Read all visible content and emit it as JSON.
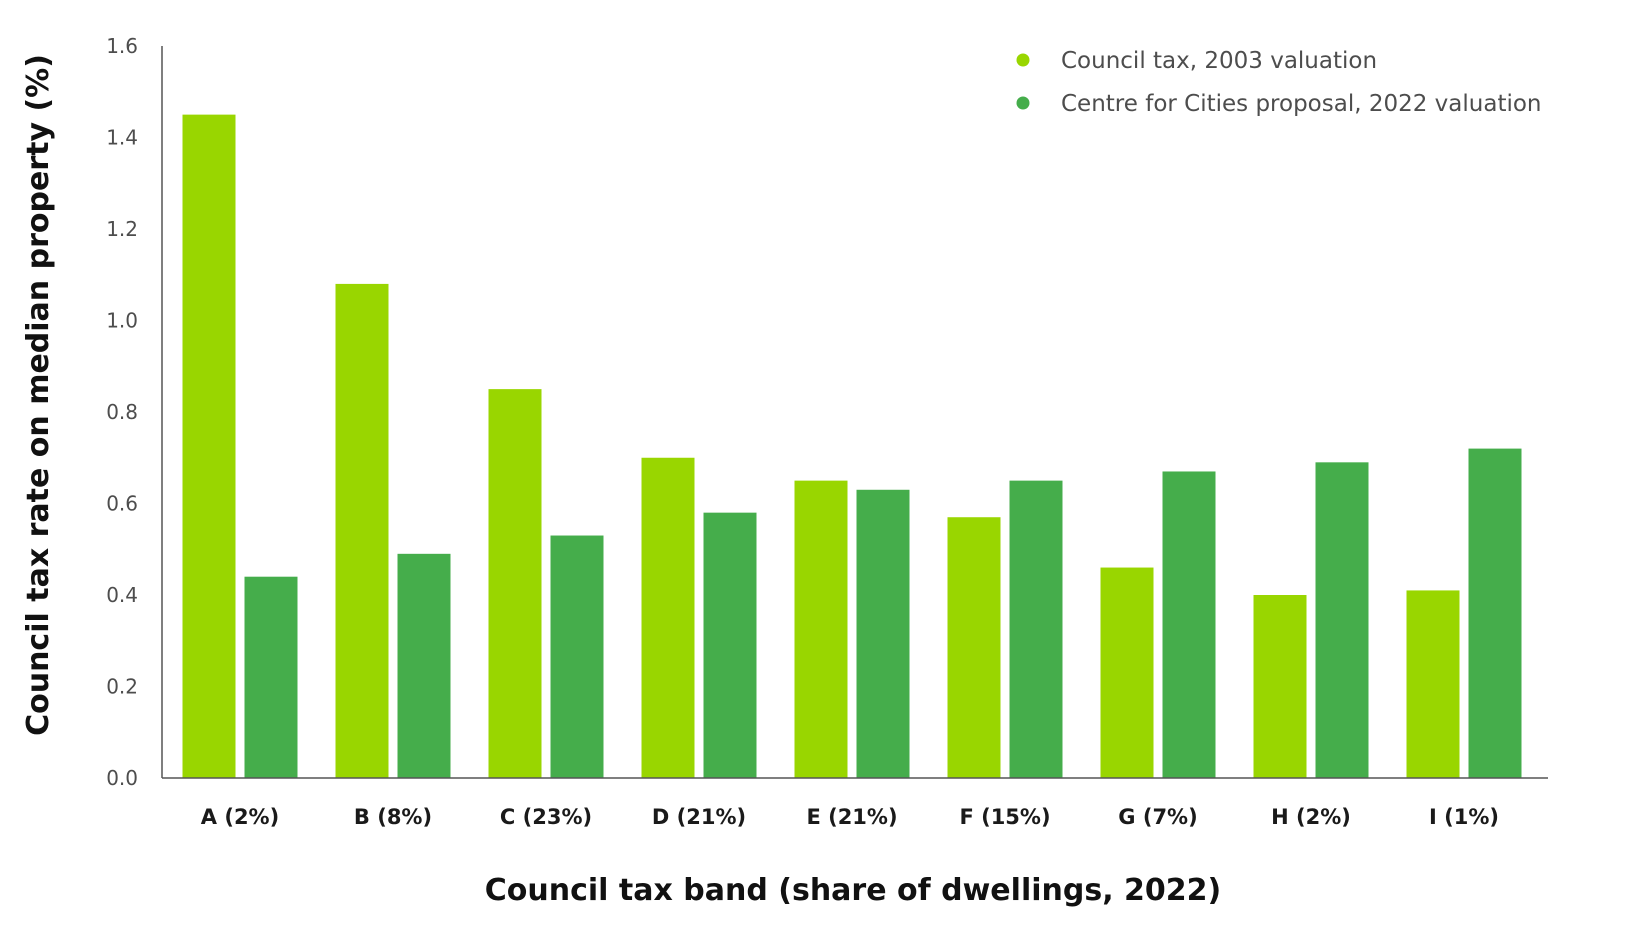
{
  "chart_data": {
    "type": "bar",
    "xlabel": "Council tax band (share of dwellings, 2022)",
    "ylabel": "Council tax rate on median property (%)",
    "ylim": [
      0,
      1.6
    ],
    "yticks": [
      "0.0",
      "0.2",
      "0.4",
      "0.6",
      "0.8",
      "1.0",
      "1.2",
      "1.4",
      "1.6"
    ],
    "grid": false,
    "legend_position": "top-right",
    "categories": [
      "A (2%)",
      "B (8%)",
      "C (23%)",
      "D (21%)",
      "E (21%)",
      "F (15%)",
      "G (7%)",
      "H (2%)",
      "I (1%)"
    ],
    "series": [
      {
        "name": "Council tax, 2003 valuation",
        "color": "#99d600",
        "values": [
          1.45,
          1.08,
          0.85,
          0.7,
          0.65,
          0.57,
          0.46,
          0.4,
          0.41
        ]
      },
      {
        "name": "Centre for Cities proposal, 2022 valuation",
        "color": "#45ad4b",
        "values": [
          0.44,
          0.49,
          0.53,
          0.58,
          0.63,
          0.65,
          0.67,
          0.69,
          0.72
        ]
      }
    ]
  }
}
